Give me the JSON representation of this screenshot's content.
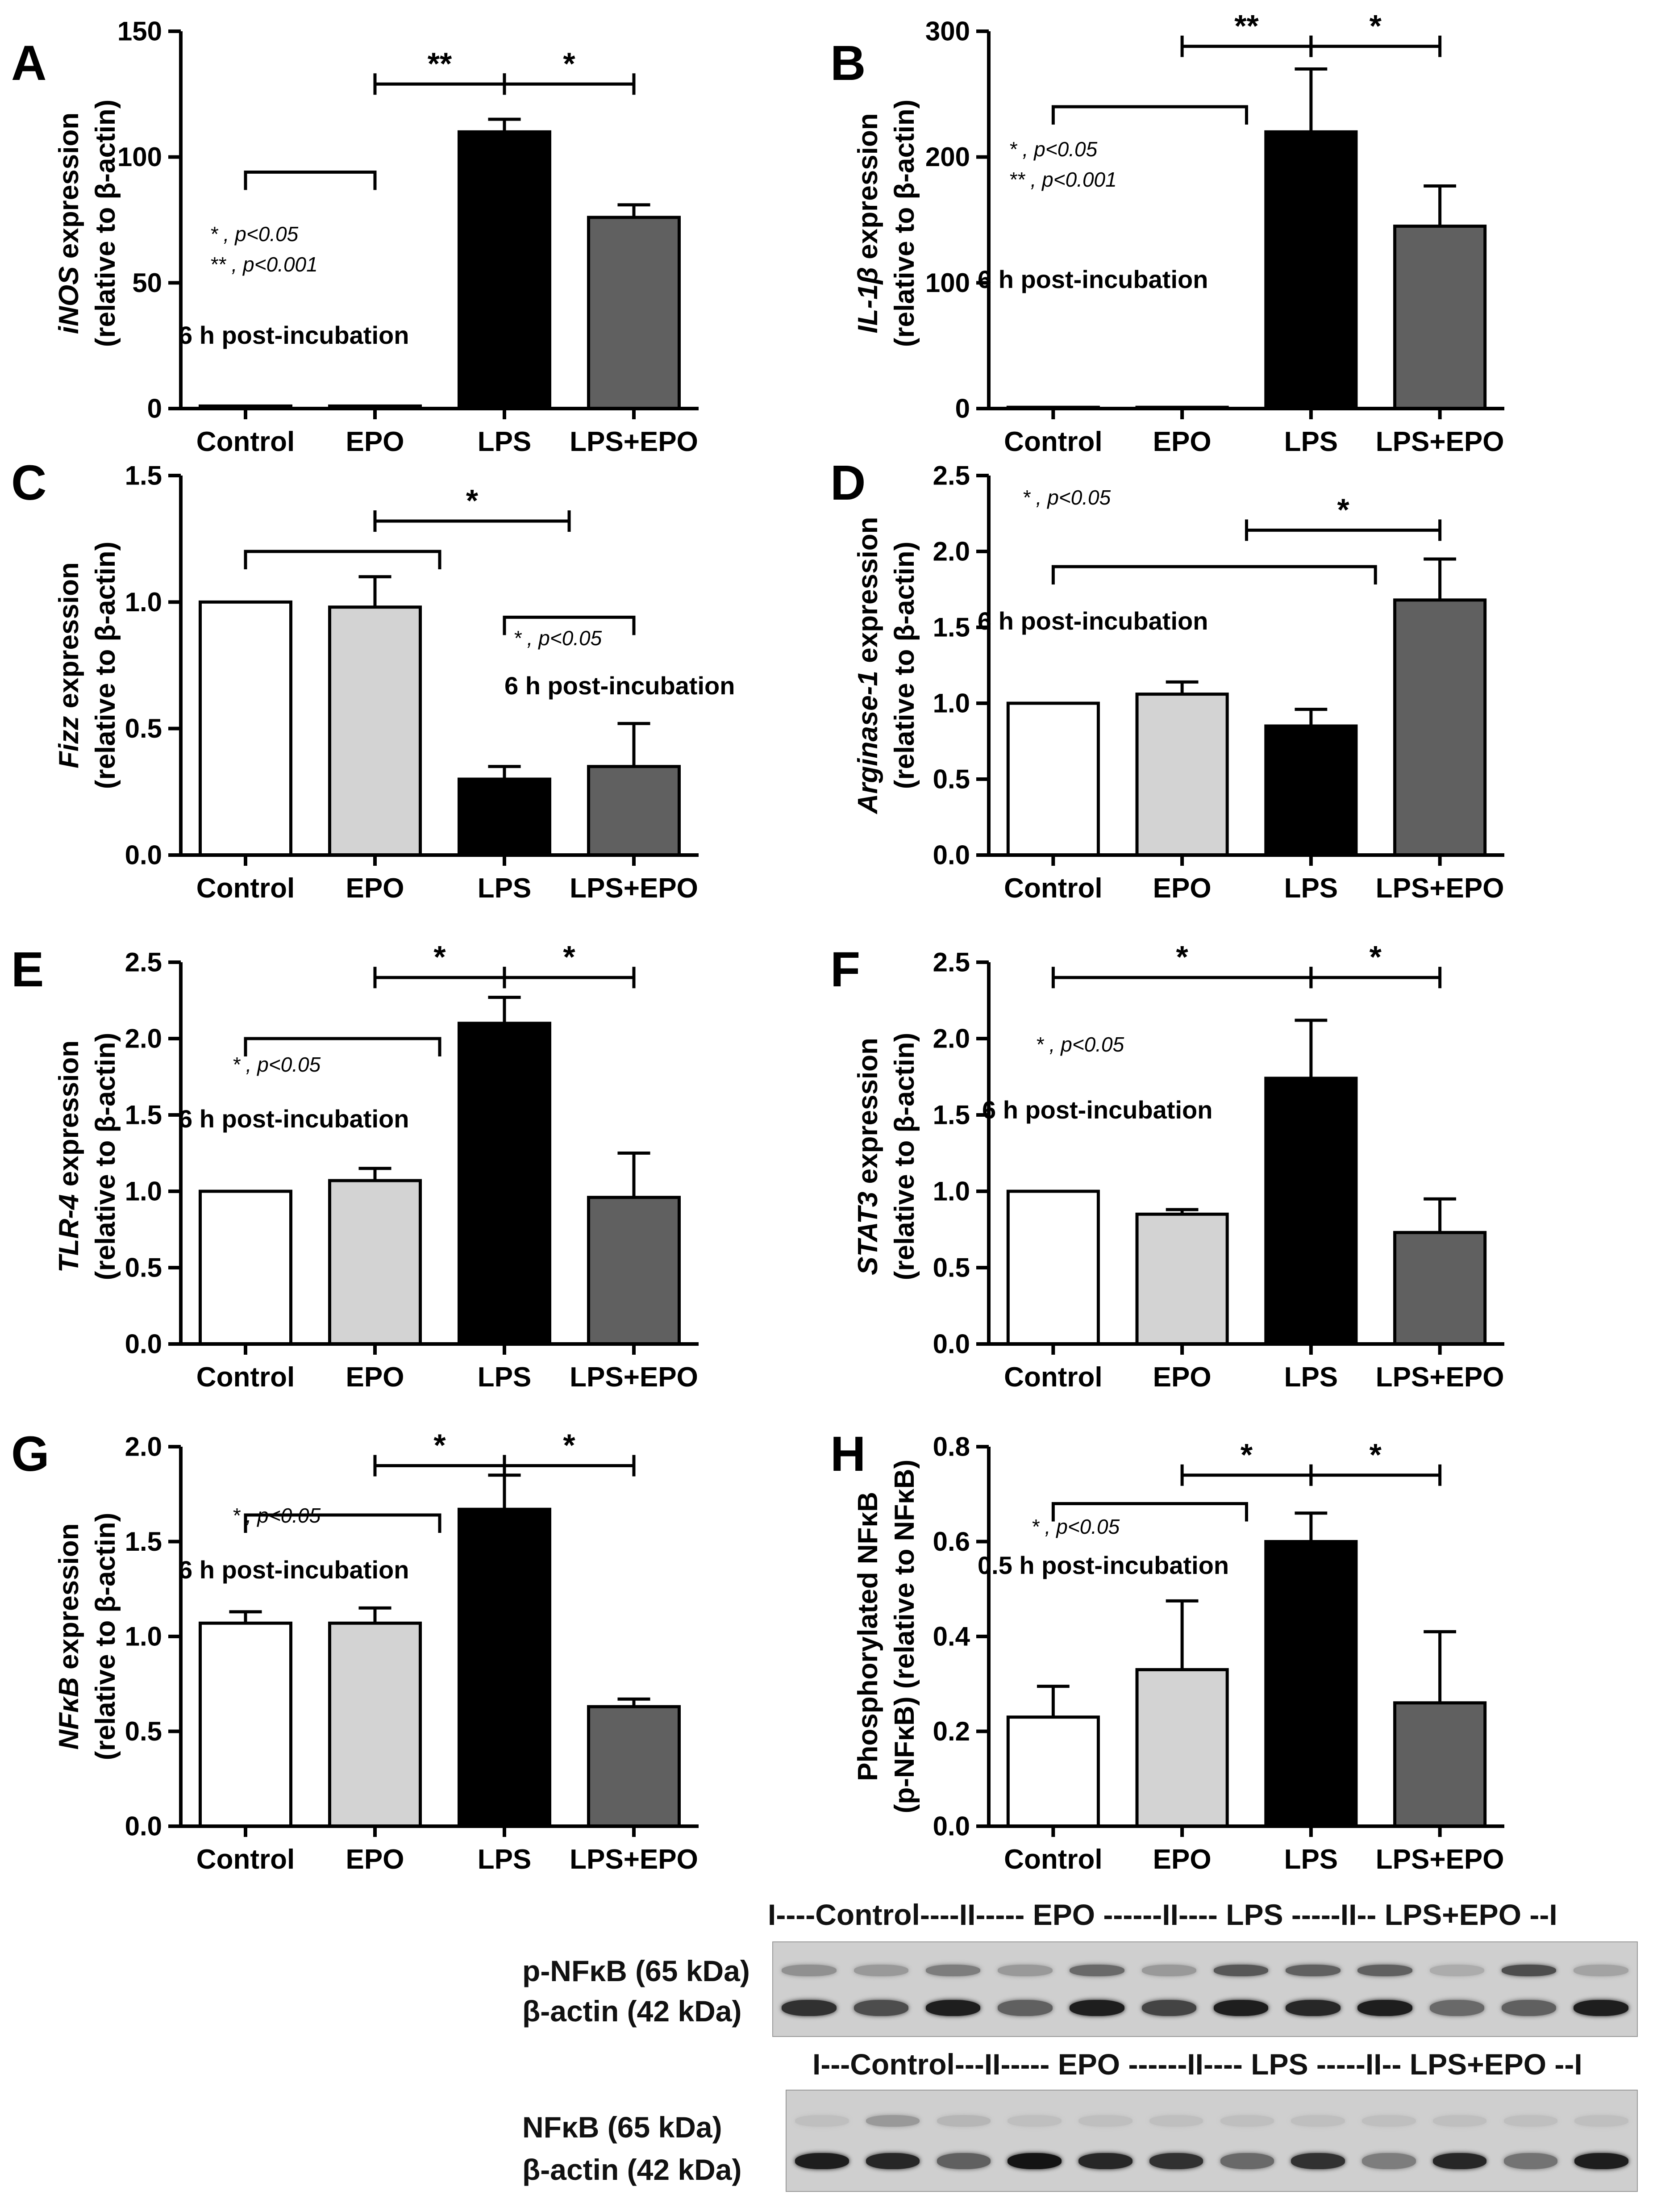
{
  "panels": [
    {
      "id": "A",
      "letter": "A",
      "ylabel_italic": "iNOS",
      "ylabel_rest": " expression",
      "ylabel_line2": "(relative to β-actin)",
      "ylim": [
        0,
        150
      ],
      "ticks": [
        0,
        50,
        100,
        150
      ],
      "tick_labels": [
        "0",
        "50",
        "100",
        "150"
      ],
      "categories": [
        "Control",
        "EPO",
        "LPS",
        "LPS+EPO"
      ],
      "values": [
        1,
        1,
        110,
        76
      ],
      "errors": [
        0,
        0,
        5,
        5
      ],
      "bar_colors": [
        "#ffffff",
        "#d3d3d3",
        "#000000",
        "#606060"
      ],
      "note": "6 h post-incubation",
      "sig_legend": [
        "* , p<0.05",
        "** , p<0.001"
      ],
      "brackets": [
        {
          "type": "open",
          "from": 0,
          "to": 1,
          "y": 94,
          "label": ""
        },
        {
          "type": "line",
          "from": 1,
          "to": 2,
          "y": 129,
          "label": "**"
        },
        {
          "type": "line",
          "from": 2,
          "to": 3,
          "y": 129,
          "label": "*"
        }
      ]
    },
    {
      "id": "B",
      "letter": "B",
      "ylabel_italic": "IL-1β",
      "ylabel_rest": " expression",
      "ylabel_line2": "(relative to β-actin)",
      "ylim": [
        0,
        300
      ],
      "ticks": [
        0,
        100,
        200,
        300
      ],
      "tick_labels": [
        "0",
        "100",
        "200",
        "300"
      ],
      "categories": [
        "Control",
        "EPO",
        "LPS",
        "LPS+EPO"
      ],
      "values": [
        1,
        1,
        220,
        145
      ],
      "errors": [
        0,
        0,
        50,
        32
      ],
      "bar_colors": [
        "#ffffff",
        "#d3d3d3",
        "#000000",
        "#606060"
      ],
      "note": "6 h post-incubation",
      "sig_legend": [
        "* , p<0.05",
        "** , p<0.001"
      ],
      "brackets": [
        {
          "type": "open",
          "from": 0,
          "to": 1.5,
          "y": 240,
          "label": ""
        },
        {
          "type": "line",
          "from": 1,
          "to": 2,
          "y": 288,
          "label": "**"
        },
        {
          "type": "line",
          "from": 2,
          "to": 3,
          "y": 288,
          "label": "*"
        }
      ]
    },
    {
      "id": "C",
      "letter": "C",
      "ylabel_italic": "Fizz",
      "ylabel_rest": "  expression",
      "ylabel_line2": "(relative to β-actin)",
      "ylim": [
        0,
        1.5
      ],
      "ticks": [
        0,
        0.5,
        1.0,
        1.5
      ],
      "tick_labels": [
        "0.0",
        "0.5",
        "1.0",
        "1.5"
      ],
      "categories": [
        "Control",
        "EPO",
        "LPS",
        "LPS+EPO"
      ],
      "values": [
        1.0,
        0.98,
        0.3,
        0.35
      ],
      "errors": [
        0,
        0.12,
        0.05,
        0.17
      ],
      "bar_colors": [
        "#ffffff",
        "#d3d3d3",
        "#000000",
        "#606060"
      ],
      "note": "6 h post-incubation",
      "sig_legend": [
        "* , p<0.05"
      ],
      "brackets": [
        {
          "type": "open",
          "from": 0,
          "to": 1.5,
          "y": 1.2,
          "label": ""
        },
        {
          "type": "line",
          "from": 1,
          "to": 2.5,
          "y": 1.32,
          "label": "*"
        },
        {
          "type": "open",
          "from": 2,
          "to": 3,
          "y": 0.94,
          "label": ""
        }
      ]
    },
    {
      "id": "D",
      "letter": "D",
      "ylabel_italic": "Arginase-1",
      "ylabel_rest": "  expression",
      "ylabel_line2": "(relative to β-actin)",
      "ylim": [
        0,
        2.5
      ],
      "ticks": [
        0,
        0.5,
        1.0,
        1.5,
        2.0,
        2.5
      ],
      "tick_labels": [
        "0.0",
        "0.5",
        "1.0",
        "1.5",
        "2.0",
        "2.5"
      ],
      "categories": [
        "Control",
        "EPO",
        "LPS",
        "LPS+EPO"
      ],
      "values": [
        1.0,
        1.06,
        0.85,
        1.68
      ],
      "errors": [
        0,
        0.08,
        0.11,
        0.27
      ],
      "bar_colors": [
        "#ffffff",
        "#d3d3d3",
        "#000000",
        "#606060"
      ],
      "note": "6 h post-incubation",
      "sig_legend": [
        "* , p<0.05"
      ],
      "brackets": [
        {
          "type": "open",
          "from": 0,
          "to": 2.5,
          "y": 1.9,
          "label": ""
        },
        {
          "type": "line",
          "from": 1.5,
          "to": 3,
          "y": 2.14,
          "label": "*"
        }
      ]
    },
    {
      "id": "E",
      "letter": "E",
      "ylabel_italic": "TLR-4",
      "ylabel_rest": " expression",
      "ylabel_line2": "(relative to β-actin)",
      "ylim": [
        0,
        2.5
      ],
      "ticks": [
        0,
        0.5,
        1.0,
        1.5,
        2.0,
        2.5
      ],
      "tick_labels": [
        "0.0",
        "0.5",
        "1.0",
        "1.5",
        "2.0",
        "2.5"
      ],
      "categories": [
        "Control",
        "EPO",
        "LPS",
        "LPS+EPO"
      ],
      "values": [
        1.0,
        1.07,
        2.1,
        0.96
      ],
      "errors": [
        0,
        0.08,
        0.17,
        0.29
      ],
      "bar_colors": [
        "#ffffff",
        "#d3d3d3",
        "#000000",
        "#606060"
      ],
      "note": "6 h post-incubation",
      "sig_legend": [
        "* , p<0.05"
      ],
      "brackets": [
        {
          "type": "open",
          "from": 0,
          "to": 1.5,
          "y": 2.0,
          "label": ""
        },
        {
          "type": "line",
          "from": 1,
          "to": 2,
          "y": 2.4,
          "label": "*"
        },
        {
          "type": "line",
          "from": 2,
          "to": 3,
          "y": 2.4,
          "label": "*"
        }
      ]
    },
    {
      "id": "F",
      "letter": "F",
      "ylabel_italic": "STAT3",
      "ylabel_rest": " expression",
      "ylabel_line2": "(relative to β-actin)",
      "ylim": [
        0,
        2.5
      ],
      "ticks": [
        0,
        0.5,
        1.0,
        1.5,
        2.0,
        2.5
      ],
      "tick_labels": [
        "0.0",
        "0.5",
        "1.0",
        "1.5",
        "2.0",
        "2.5"
      ],
      "categories": [
        "Control",
        "EPO",
        "LPS",
        "LPS+EPO"
      ],
      "values": [
        1.0,
        0.85,
        1.74,
        0.73
      ],
      "errors": [
        0,
        0.03,
        0.38,
        0.22
      ],
      "bar_colors": [
        "#ffffff",
        "#d3d3d3",
        "#000000",
        "#606060"
      ],
      "note": "6 h post-incubation",
      "sig_legend": [
        "* , p<0.05"
      ],
      "brackets": [
        {
          "type": "line",
          "from": 0,
          "to": 2,
          "y": 2.4,
          "label": "*"
        },
        {
          "type": "line",
          "from": 2,
          "to": 3,
          "y": 2.4,
          "label": "*"
        }
      ]
    },
    {
      "id": "G",
      "letter": "G",
      "ylabel_italic": "NFκB",
      "ylabel_rest": " expression",
      "ylabel_line2": "(relative to β-actin)",
      "ylim": [
        0,
        2.0
      ],
      "ticks": [
        0,
        0.5,
        1.0,
        1.5,
        2.0
      ],
      "tick_labels": [
        "0.0",
        "0.5",
        "1.0",
        "1.5",
        "2.0"
      ],
      "categories": [
        "Control",
        "EPO",
        "LPS",
        "LPS+EPO"
      ],
      "values": [
        1.07,
        1.07,
        1.67,
        0.63
      ],
      "errors": [
        0.06,
        0.08,
        0.18,
        0.04
      ],
      "bar_colors": [
        "#ffffff",
        "#d3d3d3",
        "#000000",
        "#606060"
      ],
      "note": "6 h post-incubation",
      "sig_legend": [
        "* , p<0.05"
      ],
      "brackets": [
        {
          "type": "open",
          "from": 0,
          "to": 1.5,
          "y": 1.64,
          "label": ""
        },
        {
          "type": "line",
          "from": 1,
          "to": 2,
          "y": 1.9,
          "label": "*"
        },
        {
          "type": "line",
          "from": 2,
          "to": 3,
          "y": 1.9,
          "label": "*"
        }
      ]
    },
    {
      "id": "H",
      "letter": "H",
      "ylabel_italic": "",
      "ylabel_rest": "Phosphorylated NFκB",
      "ylabel_line2": "(p-NFκB) (relative to NFκB)",
      "ylim": [
        0,
        0.8
      ],
      "ticks": [
        0,
        0.2,
        0.4,
        0.6,
        0.8
      ],
      "tick_labels": [
        "0.0",
        "0.2",
        "0.4",
        "0.6",
        "0.8"
      ],
      "categories": [
        "Control",
        "EPO",
        "LPS",
        "LPS+EPO"
      ],
      "values": [
        0.23,
        0.33,
        0.6,
        0.26
      ],
      "errors": [
        0.065,
        0.145,
        0.06,
        0.15
      ],
      "bar_colors": [
        "#ffffff",
        "#d3d3d3",
        "#000000",
        "#606060"
      ],
      "note": "0.5 h post-incubation",
      "sig_legend": [
        "* , p<0.05"
      ],
      "brackets": [
        {
          "type": "open",
          "from": 0,
          "to": 1.5,
          "y": 0.68,
          "label": ""
        },
        {
          "type": "line",
          "from": 1,
          "to": 2,
          "y": 0.74,
          "label": "*"
        },
        {
          "type": "line",
          "from": 2,
          "to": 3,
          "y": 0.74,
          "label": "*"
        }
      ]
    }
  ],
  "blots": [
    {
      "id": "p-nfkb",
      "header": "I----Control----II----- EPO ------II---- LPS -----II-- LPS+EPO --I",
      "label_top": "p-NFκB (65 kDa)",
      "label_bottom": "β-actin (42 kDa)",
      "top_band_intensity": [
        0.35,
        0.3,
        0.45,
        0.3,
        0.55,
        0.3,
        0.65,
        0.6,
        0.6,
        0.2,
        0.7,
        0.25
      ],
      "bottom_band_intensity": [
        0.85,
        0.7,
        0.95,
        0.6,
        0.95,
        0.75,
        0.95,
        0.9,
        0.95,
        0.55,
        0.6,
        0.95
      ]
    },
    {
      "id": "nfkb",
      "header": "I---Control---II----- EPO ------II---- LPS -----II-- LPS+EPO --I",
      "label_top": "NFκB (65 kDa)",
      "label_bottom": "β-actin (42 kDa)",
      "top_band_intensity": [
        0.1,
        0.3,
        0.15,
        0.1,
        0.1,
        0.1,
        0.1,
        0.1,
        0.1,
        0.1,
        0.1,
        0.1
      ],
      "bottom_band_intensity": [
        0.95,
        0.9,
        0.6,
        1.0,
        0.9,
        0.85,
        0.55,
        0.85,
        0.45,
        0.9,
        0.5,
        0.95
      ]
    }
  ],
  "chart_data": [
    {
      "type": "bar",
      "panel": "A",
      "title": "",
      "xlabel": "",
      "ylabel": "iNOS expression (relative to β-actin)",
      "categories": [
        "Control",
        "EPO",
        "LPS",
        "LPS+EPO"
      ],
      "values": [
        1,
        1,
        110,
        76
      ],
      "errors": [
        0,
        0,
        5,
        5
      ],
      "ylim": [
        0,
        150
      ]
    },
    {
      "type": "bar",
      "panel": "B",
      "title": "",
      "xlabel": "",
      "ylabel": "IL-1β expression (relative to β-actin)",
      "categories": [
        "Control",
        "EPO",
        "LPS",
        "LPS+EPO"
      ],
      "values": [
        1,
        1,
        220,
        145
      ],
      "errors": [
        0,
        0,
        50,
        32
      ],
      "ylim": [
        0,
        300
      ]
    },
    {
      "type": "bar",
      "panel": "C",
      "title": "",
      "xlabel": "",
      "ylabel": "Fizz expression (relative to β-actin)",
      "categories": [
        "Control",
        "EPO",
        "LPS",
        "LPS+EPO"
      ],
      "values": [
        1.0,
        0.98,
        0.3,
        0.35
      ],
      "errors": [
        0,
        0.12,
        0.05,
        0.17
      ],
      "ylim": [
        0,
        1.5
      ]
    },
    {
      "type": "bar",
      "panel": "D",
      "title": "",
      "xlabel": "",
      "ylabel": "Arginase-1 expression (relative to β-actin)",
      "categories": [
        "Control",
        "EPO",
        "LPS",
        "LPS+EPO"
      ],
      "values": [
        1.0,
        1.06,
        0.85,
        1.68
      ],
      "errors": [
        0,
        0.08,
        0.11,
        0.27
      ],
      "ylim": [
        0,
        2.5
      ]
    },
    {
      "type": "bar",
      "panel": "E",
      "title": "",
      "xlabel": "",
      "ylabel": "TLR-4 expression (relative to β-actin)",
      "categories": [
        "Control",
        "EPO",
        "LPS",
        "LPS+EPO"
      ],
      "values": [
        1.0,
        1.07,
        2.1,
        0.96
      ],
      "errors": [
        0,
        0.08,
        0.17,
        0.29
      ],
      "ylim": [
        0,
        2.5
      ]
    },
    {
      "type": "bar",
      "panel": "F",
      "title": "",
      "xlabel": "",
      "ylabel": "STAT3 expression (relative to β-actin)",
      "categories": [
        "Control",
        "EPO",
        "LPS",
        "LPS+EPO"
      ],
      "values": [
        1.0,
        0.85,
        1.74,
        0.73
      ],
      "errors": [
        0,
        0.03,
        0.38,
        0.22
      ],
      "ylim": [
        0,
        2.5
      ]
    },
    {
      "type": "bar",
      "panel": "G",
      "title": "",
      "xlabel": "",
      "ylabel": "NFκB expression (relative to β-actin)",
      "categories": [
        "Control",
        "EPO",
        "LPS",
        "LPS+EPO"
      ],
      "values": [
        1.07,
        1.07,
        1.67,
        0.63
      ],
      "errors": [
        0.06,
        0.08,
        0.18,
        0.04
      ],
      "ylim": [
        0,
        2.0
      ]
    },
    {
      "type": "bar",
      "panel": "H",
      "title": "",
      "xlabel": "",
      "ylabel": "Phosphorylated NFκB (p-NFκB) (relative to NFκB)",
      "categories": [
        "Control",
        "EPO",
        "LPS",
        "LPS+EPO"
      ],
      "values": [
        0.23,
        0.33,
        0.6,
        0.26
      ],
      "errors": [
        0.065,
        0.145,
        0.06,
        0.15
      ],
      "ylim": [
        0,
        0.8
      ]
    }
  ]
}
